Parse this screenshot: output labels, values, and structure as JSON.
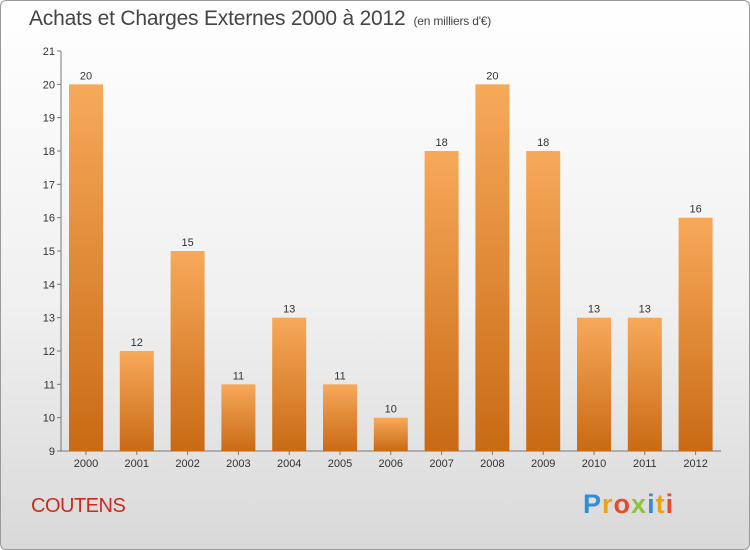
{
  "header": {
    "title": "Achats et Charges Externes 2000 à 2012",
    "subtitle": "(en milliers d'€)"
  },
  "footer": {
    "commune": "COUTENS",
    "logo_letters": [
      "P",
      "r",
      "o",
      "x",
      "i",
      "t",
      "i"
    ],
    "logo_colors": [
      "#2f8fd5",
      "#e7a31d",
      "#e84b2b",
      "#8ec33d",
      "#2f8fd5",
      "#e7a31d",
      "#e84b2b"
    ]
  },
  "chart_data": {
    "type": "bar",
    "title": "Achats et Charges Externes 2000 à 2012",
    "subtitle": "(en milliers d'€)",
    "categories": [
      "2000",
      "2001",
      "2002",
      "2003",
      "2004",
      "2005",
      "2006",
      "2007",
      "2008",
      "2009",
      "2010",
      "2011",
      "2012"
    ],
    "values": [
      20,
      12,
      15,
      11,
      13,
      11,
      10,
      18,
      20,
      18,
      13,
      13,
      16
    ],
    "ylim": [
      9,
      21
    ],
    "yticks": [
      9,
      10,
      11,
      12,
      13,
      14,
      15,
      16,
      17,
      18,
      19,
      20,
      21
    ],
    "grid": false,
    "bar_color_top": "#f7a95a",
    "bar_color_bottom": "#c96a14"
  }
}
